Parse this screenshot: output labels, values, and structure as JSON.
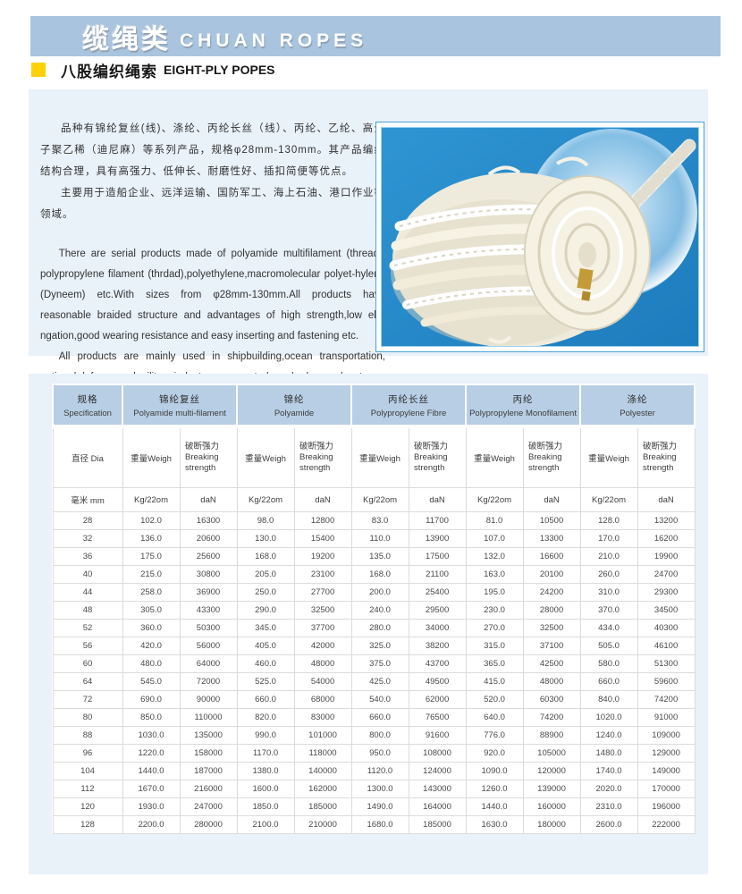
{
  "header": {
    "title_zh": "缆绳类",
    "title_en": "CHUAN ROPES"
  },
  "subtitle": {
    "zh": "八股编织绳索",
    "en": "EIGHT-PLY POPES"
  },
  "intro": {
    "zh_p1": "品种有锦纶复丝(线)、涤纶、丙纶长丝（线）、丙纶、乙纶、高分子聚乙稀（迪尼麻）等系列产品，规格φ28mm-130mm。其产品编织结构合理，具有高强力、低伸长、耐磨性好、插扣简便等优点。",
    "zh_p2": "主要用于造船企业、远洋运输、国防军工、海上石油、港口作业等领域。",
    "en_p1": "There are serial products made of polyamide multifilament (thread), polypropylene filament (thrdad),polyethylene,macromolecular polyet-hylene (Dyneem) etc.With sizes from φ28mm-130mm.All products have reasonable braided structure and advantages of high strength,low elo-ngation,good wearing resistance and easy inserting and fastening etc.",
    "en_p2": "All products are mainly used in shipbuilding,ocean transportation, national defense and military industry,ocean petroleum,harbor works etc."
  },
  "colors": {
    "banner_blue": "#a9c4de",
    "accent_yellow": "#fdd108",
    "section_bg": "#e9f1f9",
    "table_header_blue": "#b7cee4",
    "photo_background_blue": "#2089cc"
  },
  "table": {
    "materials": [
      {
        "zh": "规格",
        "en": "Specification"
      },
      {
        "zh": "锦纶复丝",
        "en": "Polyamide multi-filament"
      },
      {
        "zh": "锦纶",
        "en": "Polyamide"
      },
      {
        "zh": "丙纶长丝",
        "en": "Polypropylene Fibre"
      },
      {
        "zh": "丙纶",
        "en": "Polypropylene Monofilament"
      },
      {
        "zh": "涤纶",
        "en": "Polyester"
      }
    ],
    "dia_label": "直径 Dia",
    "weight_label": "重量Weigh",
    "strength_zh": "破断强力",
    "strength_en": "Breaking strength",
    "unit_mm": "毫米 mm",
    "unit_weight": "Kg/22om",
    "unit_strength": "daN",
    "rows": [
      [
        "28",
        "102.0",
        "16300",
        "98.0",
        "12800",
        "83.0",
        "11700",
        "81.0",
        "10500",
        "128.0",
        "13200"
      ],
      [
        "32",
        "136.0",
        "20600",
        "130.0",
        "15400",
        "110.0",
        "13900",
        "107.0",
        "13300",
        "170.0",
        "16200"
      ],
      [
        "36",
        "175.0",
        "25600",
        "168.0",
        "19200",
        "135.0",
        "17500",
        "132.0",
        "16600",
        "210.0",
        "19900"
      ],
      [
        "40",
        "215.0",
        "30800",
        "205.0",
        "23100",
        "168.0",
        "21100",
        "163.0",
        "20100",
        "260.0",
        "24700"
      ],
      [
        "44",
        "258.0",
        "36900",
        "250.0",
        "27700",
        "200.0",
        "25400",
        "195.0",
        "24200",
        "310.0",
        "29300"
      ],
      [
        "48",
        "305.0",
        "43300",
        "290.0",
        "32500",
        "240.0",
        "29500",
        "230.0",
        "28000",
        "370.0",
        "34500"
      ],
      [
        "52",
        "360.0",
        "50300",
        "345.0",
        "37700",
        "280.0",
        "34000",
        "270.0",
        "32500",
        "434.0",
        "40300"
      ],
      [
        "56",
        "420.0",
        "56000",
        "405.0",
        "42000",
        "325.0",
        "38200",
        "315.0",
        "37100",
        "505.0",
        "46100"
      ],
      [
        "60",
        "480.0",
        "64000",
        "460.0",
        "48000",
        "375.0",
        "43700",
        "365.0",
        "42500",
        "580.0",
        "51300"
      ],
      [
        "64",
        "545.0",
        "72000",
        "525.0",
        "54000",
        "425.0",
        "49500",
        "415.0",
        "48000",
        "660.0",
        "59600"
      ],
      [
        "72",
        "690.0",
        "90000",
        "660.0",
        "68000",
        "540.0",
        "62000",
        "520.0",
        "60300",
        "840.0",
        "74200"
      ],
      [
        "80",
        "850.0",
        "110000",
        "820.0",
        "83000",
        "660.0",
        "76500",
        "640.0",
        "74200",
        "1020.0",
        "91000"
      ],
      [
        "88",
        "1030.0",
        "135000",
        "990.0",
        "101000",
        "800.0",
        "91600",
        "776.0",
        "88900",
        "1240.0",
        "109000"
      ],
      [
        "96",
        "1220.0",
        "158000",
        "1170.0",
        "118000",
        "950.0",
        "108000",
        "920.0",
        "105000",
        "1480.0",
        "129000"
      ],
      [
        "104",
        "1440.0",
        "187000",
        "1380.0",
        "140000",
        "1120.0",
        "124000",
        "1090.0",
        "120000",
        "1740.0",
        "149000"
      ],
      [
        "112",
        "1670.0",
        "216000",
        "1600.0",
        "162000",
        "1300.0",
        "143000",
        "1260.0",
        "139000",
        "2020.0",
        "170000"
      ],
      [
        "120",
        "1930.0",
        "247000",
        "1850.0",
        "185000",
        "1490.0",
        "164000",
        "1440.0",
        "160000",
        "2310.0",
        "196000"
      ],
      [
        "128",
        "2200.0",
        "280000",
        "2100.0",
        "210000",
        "1680.0",
        "185000",
        "1630.0",
        "180000",
        "2600.0",
        "222000"
      ]
    ]
  }
}
